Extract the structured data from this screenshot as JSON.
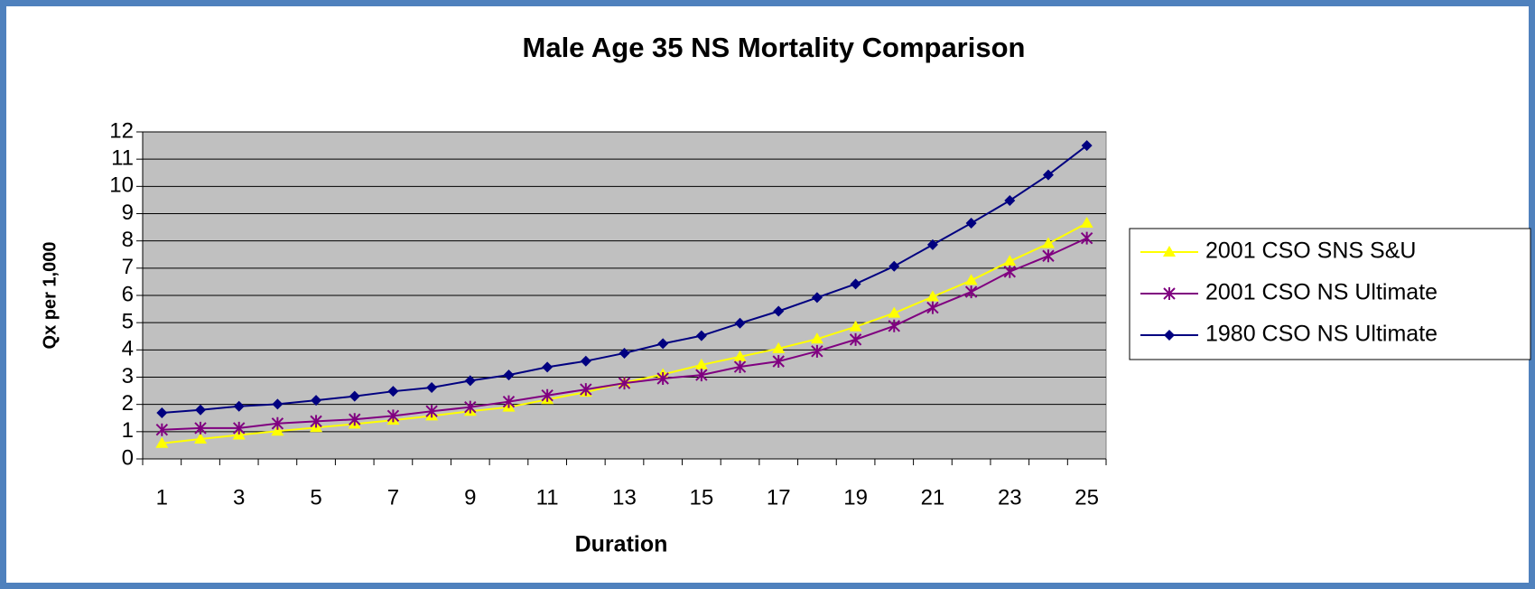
{
  "chart_data": {
    "type": "line",
    "title": "Male Age 35 NS Mortality Comparison",
    "x_label": "Duration",
    "y_label": "Qx per 1,000",
    "categories": [
      1,
      null,
      3,
      null,
      5,
      null,
      7,
      null,
      9,
      null,
      11,
      null,
      13,
      null,
      15,
      null,
      17,
      null,
      19,
      null,
      21,
      null,
      23,
      null,
      25
    ],
    "series": [
      {
        "name": "2001 CSO SNS S&U",
        "color": "#ffff00",
        "marker": "triangle",
        "values": [
          0.57,
          0.73,
          0.88,
          1.02,
          1.15,
          1.28,
          1.42,
          1.58,
          1.75,
          1.9,
          2.18,
          2.45,
          2.8,
          3.1,
          3.45,
          3.75,
          4.05,
          4.4,
          4.85,
          5.35,
          5.95,
          6.55,
          7.25,
          7.9,
          8.65
        ]
      },
      {
        "name": "2001 CSO NS Ultimate",
        "color": "#800080",
        "marker": "asterisk",
        "values": [
          1.07,
          1.13,
          1.13,
          1.3,
          1.38,
          1.45,
          1.58,
          1.75,
          1.9,
          2.1,
          2.33,
          2.55,
          2.78,
          2.95,
          3.08,
          3.38,
          3.58,
          3.95,
          4.38,
          4.88,
          5.55,
          6.13,
          6.87,
          7.45,
          8.1
        ]
      },
      {
        "name": "1980 CSO NS Ultimate",
        "color": "#000080",
        "marker": "diamond",
        "values": [
          1.69,
          1.8,
          1.93,
          2.01,
          2.15,
          2.3,
          2.48,
          2.62,
          2.87,
          3.08,
          3.37,
          3.59,
          3.88,
          4.23,
          4.52,
          4.98,
          5.42,
          5.92,
          6.42,
          7.07,
          7.86,
          8.65,
          9.48,
          10.42,
          11.5
        ]
      }
    ],
    "ylim": [
      0,
      12
    ],
    "yticks": [
      0,
      1,
      2,
      3,
      4,
      5,
      6,
      7,
      8,
      9,
      10,
      11,
      12
    ],
    "grid": true,
    "plot_background": "#c0c0c0",
    "legend": "right"
  }
}
